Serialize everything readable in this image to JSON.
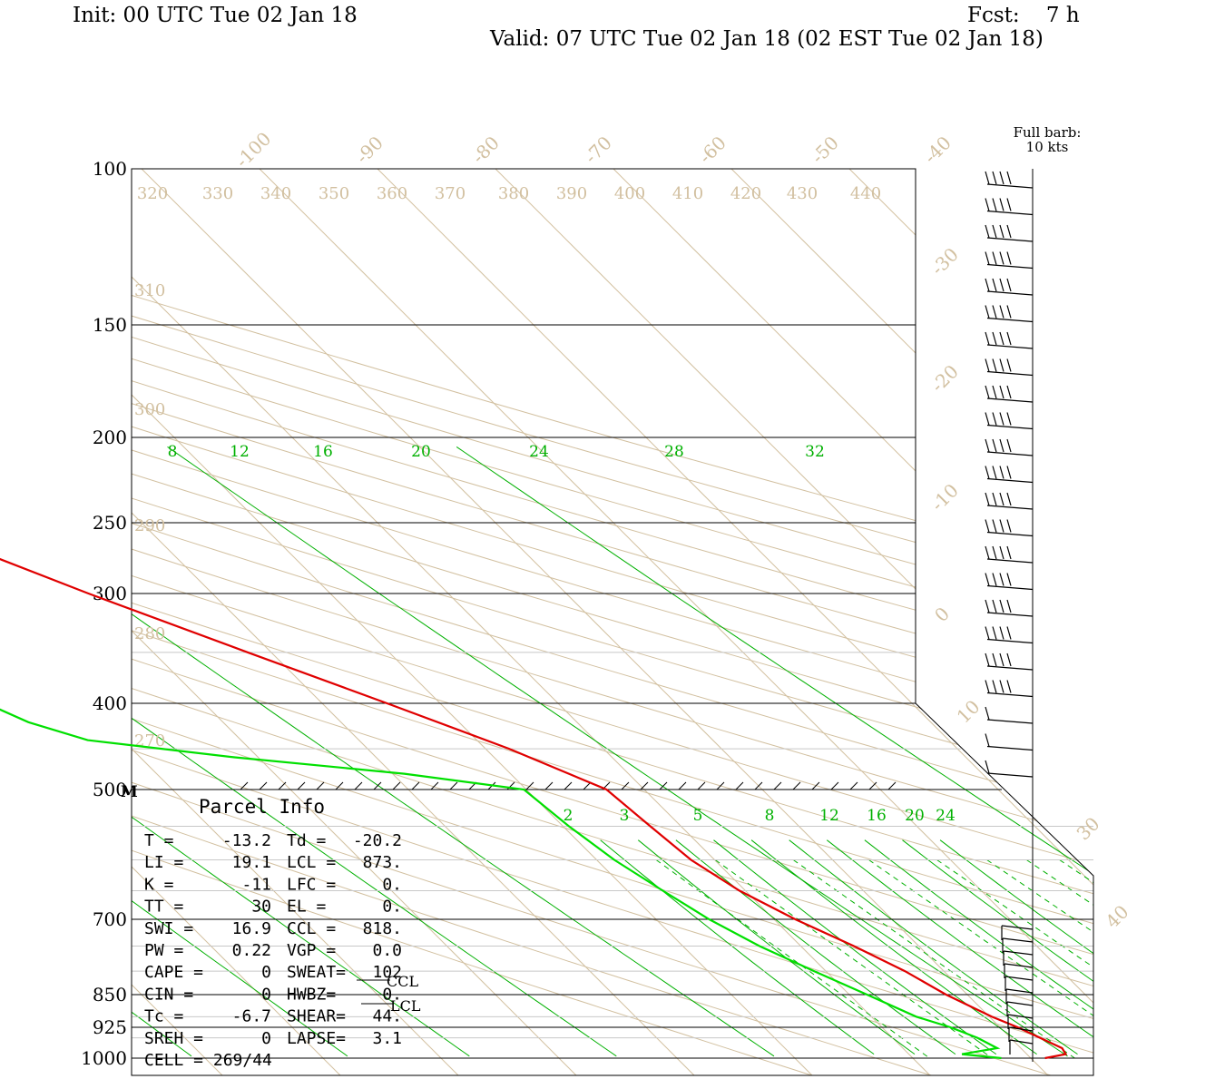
{
  "header": {
    "init": "Init: 00 UTC Tue 02 Jan 18",
    "fcst": "Fcst:    7 h",
    "valid": "Valid: 07 UTC Tue 02 Jan 18 (02 EST Tue 02 Jan 18)"
  },
  "barb_legend": {
    "line1": "Full barb:",
    "line2": "10 kts"
  },
  "colors": {
    "temperature": "#e00000",
    "dewpoint": "#00e000",
    "isotherm": "#d2c0a0",
    "mixing_ratio": "#00b000",
    "frame": "#000000"
  },
  "chart_data": {
    "type": "line",
    "xlabel": "",
    "ylabel": "",
    "pressure_levels": [
      "100",
      "150",
      "200",
      "250",
      "300",
      "400",
      "500",
      "700",
      "850",
      "925",
      "1000"
    ],
    "isotherm_labels": [
      "-100",
      "-90",
      "-80",
      "-70",
      "-60",
      "-50",
      "-40",
      "-30",
      "-20",
      "-10",
      "0",
      "10",
      "30",
      "40"
    ],
    "theta_top_labels": [
      "320",
      "330",
      "340",
      "350",
      "360",
      "370",
      "380",
      "390",
      "400",
      "410",
      "420",
      "430",
      "440"
    ],
    "theta_side_labels": [
      "310",
      "300",
      "290",
      "280",
      "270"
    ],
    "mixing_ratio_upper_labels": [
      "8",
      "12",
      "16",
      "20",
      "24",
      "28",
      "32"
    ],
    "mixing_ratio_lower_labels": [
      "2",
      "3",
      "5",
      "8",
      "12",
      "16",
      "20",
      "24"
    ],
    "level_markers": {
      "m500": "M",
      "ccl": "CCL",
      "lcl": "LCL"
    },
    "series": [
      {
        "points": [
          [
            1000,
            1.2
          ],
          [
            990,
            3.3
          ],
          [
            975,
            3.5
          ],
          [
            950,
            2.5
          ],
          [
            925,
            1.5
          ],
          [
            900,
            0.2
          ],
          [
            850,
            -1.8
          ],
          [
            800,
            -3.3
          ],
          [
            750,
            -5.5
          ],
          [
            700,
            -8.2
          ],
          [
            650,
            -10.5
          ],
          [
            600,
            -12.0
          ],
          [
            550,
            -12.6
          ],
          [
            500,
            -13.2
          ],
          [
            450,
            -18.0
          ],
          [
            400,
            -24.5
          ],
          [
            350,
            -32.0
          ],
          [
            300,
            -40.5
          ],
          [
            275,
            -45.0
          ],
          [
            250,
            -49.5
          ],
          [
            225,
            -53.0
          ],
          [
            200,
            -56.0
          ],
          [
            175,
            -59.5
          ],
          [
            150,
            -63.5
          ],
          [
            125,
            -68.0
          ],
          [
            110,
            -71.0
          ],
          [
            105,
            -71.5
          ]
        ]
      },
      {
        "points": [
          [
            1000,
            -2.5
          ],
          [
            990,
            -5.5
          ],
          [
            975,
            -2.0
          ],
          [
            950,
            -2.8
          ],
          [
            925,
            -4.2
          ],
          [
            900,
            -6.2
          ],
          [
            850,
            -8.5
          ],
          [
            800,
            -11.0
          ],
          [
            750,
            -13.5
          ],
          [
            700,
            -15.5
          ],
          [
            650,
            -17.0
          ],
          [
            600,
            -18.5
          ],
          [
            550,
            -19.5
          ],
          [
            500,
            -20.2
          ],
          [
            480,
            -29.0
          ],
          [
            460,
            -42.0
          ],
          [
            440,
            -53.0
          ],
          [
            420,
            -56.5
          ],
          [
            400,
            -58.5
          ],
          [
            350,
            -64.0
          ],
          [
            300,
            -70.0
          ],
          [
            280,
            -72.5
          ],
          [
            250,
            -77.0
          ],
          [
            225,
            -82.0
          ],
          [
            205,
            -85.5
          ],
          [
            200,
            -86.0
          ],
          [
            180,
            -84.0
          ],
          [
            160,
            -83.0
          ],
          [
            150,
            -83.0
          ],
          [
            130,
            -84.5
          ],
          [
            115,
            -85.5
          ],
          [
            105,
            -86.5
          ]
        ]
      }
    ]
  },
  "parcel_info": {
    "title": "Parcel Info",
    "rows": [
      {
        "l1": "T  =",
        "v1": "-13.2",
        "l2": "Td =",
        "v2": "-20.2"
      },
      {
        "l1": "LI =",
        "v1": "19.1",
        "l2": "LCL =",
        "v2": "873."
      },
      {
        "l1": "K  =",
        "v1": "-11",
        "l2": "LFC =",
        "v2": "0."
      },
      {
        "l1": "TT =",
        "v1": "30",
        "l2": "EL  =",
        "v2": "0."
      },
      {
        "l1": "SWI =",
        "v1": "16.9",
        "l2": "CCL =",
        "v2": "818."
      },
      {
        "l1": "PW =",
        "v1": "0.22",
        "l2": "VGP =",
        "v2": "0.0"
      },
      {
        "l1": "CAPE =",
        "v1": "0",
        "l2": "SWEAT=",
        "v2": "102"
      },
      {
        "l1": "CIN =",
        "v1": "0",
        "l2": "HWBZ=",
        "v2": "0."
      },
      {
        "l1": "Tc =",
        "v1": "-6.7",
        "l2": "SHEAR=",
        "v2": "44."
      },
      {
        "l1": "SREH =",
        "v1": "0",
        "l2": "LAPSE=",
        "v2": "3.1"
      },
      {
        "l1": "CELL = 269/44",
        "v1": "",
        "l2": "",
        "v2": ""
      }
    ]
  }
}
